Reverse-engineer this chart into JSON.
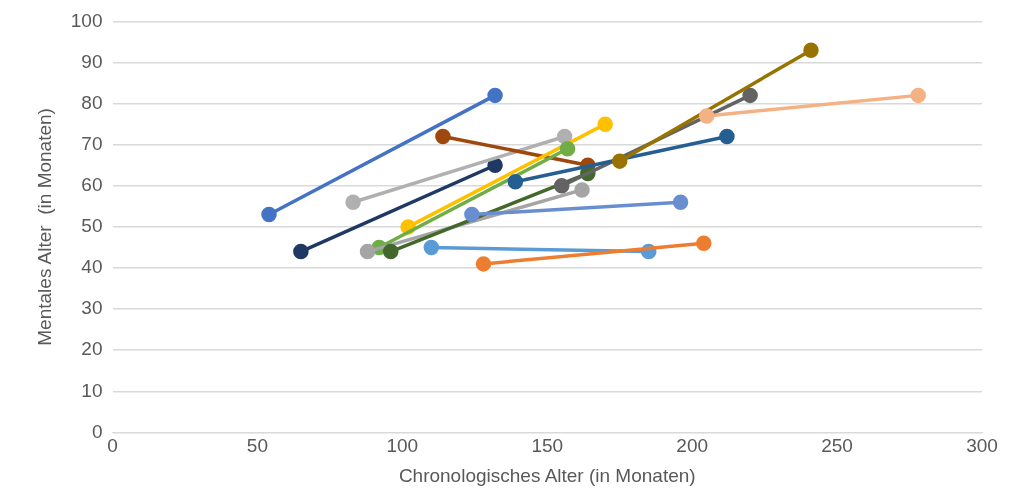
{
  "chart_data": {
    "type": "line",
    "xlabel": "Chronologisches Alter (in Monaten)",
    "ylabel": "Mentales Alter  (in Monaten)",
    "xlim": [
      0,
      300
    ],
    "xticks": [
      0,
      50,
      100,
      150,
      200,
      250,
      300
    ],
    "ylim": [
      0,
      100
    ],
    "yticks": [
      0,
      10,
      20,
      30,
      40,
      50,
      60,
      70,
      80,
      90,
      100
    ],
    "grid": "y",
    "legend": false,
    "marker": "circle",
    "line_style": "solid",
    "series": [
      {
        "color": "#4472c4",
        "x": [
          54,
          132
        ],
        "values": [
          53,
          82
        ]
      },
      {
        "color": "#1f3864",
        "x": [
          65,
          132
        ],
        "values": [
          44,
          65
        ]
      },
      {
        "color": "#b0b0b0",
        "x": [
          83,
          156
        ],
        "values": [
          56,
          72
        ]
      },
      {
        "color": "#9e480e",
        "x": [
          114,
          164
        ],
        "values": [
          72,
          65
        ]
      },
      {
        "color": "#ffc000",
        "x": [
          102,
          170
        ],
        "values": [
          50,
          75
        ]
      },
      {
        "color": "#70ad47",
        "x": [
          92,
          157
        ],
        "values": [
          45,
          69
        ]
      },
      {
        "color": "#a5a5a5",
        "x": [
          88,
          162
        ],
        "values": [
          44,
          59
        ]
      },
      {
        "color": "#43682b",
        "x": [
          96,
          164
        ],
        "values": [
          44,
          63
        ]
      },
      {
        "color": "#636363",
        "x": [
          155,
          220
        ],
        "values": [
          60,
          82
        ]
      },
      {
        "color": "#255e91",
        "x": [
          139,
          212
        ],
        "values": [
          61,
          72
        ]
      },
      {
        "color": "#698ed0",
        "x": [
          124,
          196
        ],
        "values": [
          53,
          56
        ]
      },
      {
        "color": "#5b9bd5",
        "x": [
          110,
          185
        ],
        "values": [
          45,
          44
        ]
      },
      {
        "color": "#ed7d31",
        "x": [
          128,
          204
        ],
        "values": [
          41,
          46
        ]
      },
      {
        "color": "#997300",
        "x": [
          175,
          241
        ],
        "values": [
          66,
          93
        ]
      },
      {
        "color": "#f4b183",
        "x": [
          205,
          278
        ],
        "values": [
          77,
          82
        ]
      }
    ]
  }
}
